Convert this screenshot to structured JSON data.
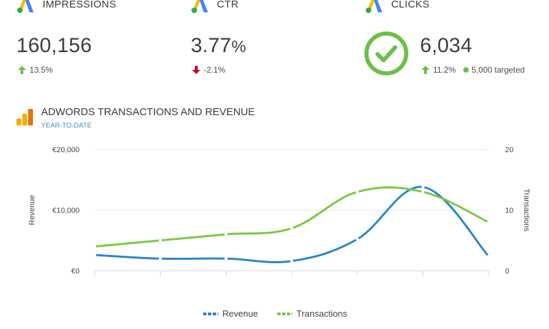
{
  "kpis": [
    {
      "label": "IMPRESSIONS",
      "value": "160,156",
      "unit": "",
      "change": "13.5%",
      "direction": "up"
    },
    {
      "label": "CTR",
      "value": "3.77",
      "unit": "%",
      "change": "-2.1%",
      "direction": "down"
    },
    {
      "label": "CLICKS",
      "value": "6,034",
      "unit": "",
      "change": "11.2%",
      "direction": "up",
      "target": "5,000 targeted"
    }
  ],
  "section": {
    "title": "ADWORDS TRANSACTIONS AND REVENUE",
    "subtitle": "YEAR-TO-DATE"
  },
  "colors": {
    "revenue": "#2a86c8",
    "transactions": "#7ac943",
    "up": "#6cc04a",
    "down": "#d0021b",
    "ads_blue": "#4285f4",
    "ads_yellow": "#fbbc04"
  },
  "chart_data": {
    "type": "line",
    "x": [
      1,
      2,
      3,
      4,
      5,
      6,
      7
    ],
    "series": [
      {
        "name": "Revenue",
        "axis": "left",
        "values": [
          2600,
          2000,
          2000,
          1600,
          5200,
          13800,
          2400
        ]
      },
      {
        "name": "Transactions",
        "axis": "right",
        "values": [
          4,
          5,
          6,
          7,
          13,
          13,
          8
        ]
      }
    ],
    "ylabel": "Revenue",
    "y2label": "Transactions",
    "ylim": [
      0,
      20000
    ],
    "y2lim": [
      0,
      20
    ],
    "yticks": [
      "€0",
      "€10,000",
      "€20,000"
    ],
    "y2ticks": [
      "0",
      "10",
      "20"
    ],
    "grid": true,
    "legend": "bottom-center"
  }
}
